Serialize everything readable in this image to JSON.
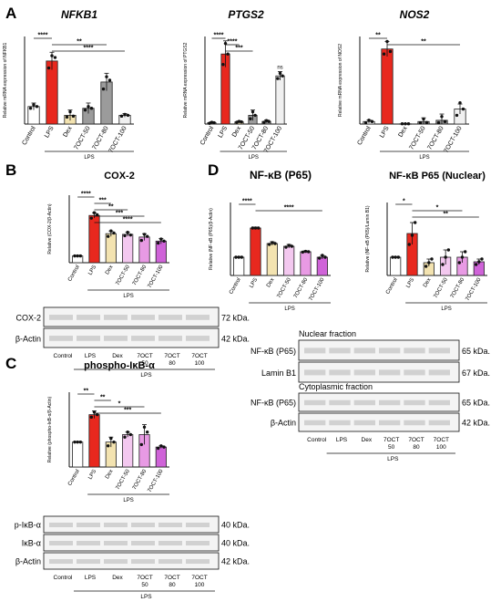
{
  "panels": {
    "A": {
      "letter": "A"
    },
    "B": {
      "letter": "B",
      "title": "COX-2"
    },
    "C": {
      "letter": "C",
      "title": "phospho-IκB-α"
    },
    "D": {
      "letter": "D"
    }
  },
  "group_label": "LPS",
  "chart_data": [
    {
      "id": "nfkb1",
      "type": "bar",
      "title": "NFKB1",
      "ylabel": "Relative mRNA expression of NFKB1",
      "categories": [
        "Control",
        "LPS",
        "Dex",
        "7OCT-50",
        "7OCT-80",
        "7OCT-100"
      ],
      "values": [
        1.0,
        3.6,
        0.5,
        0.9,
        2.4,
        0.5
      ],
      "errors": [
        0.2,
        0.5,
        0.3,
        0.3,
        0.5,
        0.1
      ],
      "points": [
        [
          0.9,
          1.1,
          1.0
        ],
        [
          3.2,
          3.9,
          3.8
        ],
        [
          0.4,
          0.7,
          0.45
        ],
        [
          0.8,
          1.0,
          0.9
        ],
        [
          2.0,
          2.7,
          2.5
        ],
        [
          0.45,
          0.55,
          0.5
        ]
      ],
      "ylim": [
        0,
        5
      ],
      "sig": [
        {
          "from": 0,
          "to": 1,
          "label": "****"
        },
        {
          "from": 1,
          "to": 4,
          "label": "**"
        },
        {
          "from": 1,
          "to": 5,
          "label": "****"
        }
      ],
      "group_label": "LPS"
    },
    {
      "id": "ptgs2",
      "type": "bar",
      "title": "PTGS2",
      "ylabel": "Relative mRNA expression of PTGS2",
      "categories": [
        "Control",
        "LPS",
        "Dex",
        "7OCT-50",
        "7OCT-80",
        "7OCT-100"
      ],
      "values": [
        1.5,
        80,
        2.5,
        10,
        3,
        55
      ],
      "errors": [
        1.0,
        15,
        1.0,
        6,
        1.5,
        5
      ],
      "points": [
        [
          0.8,
          2.0,
          1.5
        ],
        [
          68,
          92,
          80
        ],
        [
          2.0,
          3.0,
          2.5
        ],
        [
          6,
          14,
          10
        ],
        [
          2.0,
          4.0,
          3.0
        ],
        [
          52,
          58,
          55
        ]
      ],
      "ylim": [
        0,
        100
      ],
      "sig": [
        {
          "from": 0,
          "to": 1,
          "label": "****"
        },
        {
          "from": 1,
          "to": 2,
          "label": "****"
        },
        {
          "from": 1,
          "to": 3,
          "label": "***"
        },
        {
          "from": 5,
          "to": 5,
          "label": "ns"
        }
      ],
      "group_label": "LPS"
    },
    {
      "id": "nos2",
      "type": "bar",
      "title": "NOS2",
      "ylabel": "Relative mRNA expression of NOS2",
      "categories": [
        "Control",
        "LPS",
        "Dex",
        "7OCT-50",
        "7OCT-80",
        "7OCT-100"
      ],
      "values": [
        1.0,
        30,
        0.1,
        1.0,
        1.5,
        6
      ],
      "errors": [
        0.6,
        3,
        0.1,
        1.5,
        2.5,
        2
      ],
      "points": [
        [
          0.5,
          1.5,
          1.0
        ],
        [
          28,
          33,
          29
        ],
        [
          0.1,
          0.1,
          0.1
        ],
        [
          0.5,
          2.0,
          0.6
        ],
        [
          0.5,
          3.0,
          1.0
        ],
        [
          3.5,
          8.5,
          6.0
        ]
      ],
      "ylim": [
        0,
        35
      ],
      "sig": [
        {
          "from": 0,
          "to": 1,
          "label": "**"
        },
        {
          "from": 1,
          "to": 5,
          "label": "**"
        }
      ],
      "group_label": "LPS"
    },
    {
      "id": "cox2",
      "type": "bar",
      "title": "COX-2",
      "ylabel": "Relative (COX-2/β-Actin)",
      "categories": [
        "Control",
        "LPS",
        "Dex",
        "7OCT-50",
        "7OCT-80",
        "7OCT-100"
      ],
      "values": [
        1.0,
        7.0,
        4.3,
        4.2,
        3.8,
        3.2
      ],
      "errors": [
        0.05,
        0.4,
        0.4,
        0.3,
        0.5,
        0.4
      ],
      "points": [
        [
          1.0,
          1.0,
          1.0
        ],
        [
          6.6,
          7.4,
          7.1
        ],
        [
          3.9,
          4.7,
          4.4
        ],
        [
          4.0,
          4.5,
          4.1
        ],
        [
          3.3,
          4.2,
          3.9
        ],
        [
          2.9,
          3.5,
          3.2
        ]
      ],
      "ylim": [
        0,
        10
      ],
      "sig": [
        {
          "from": 0,
          "to": 1,
          "label": "****"
        },
        {
          "from": 1,
          "to": 2,
          "label": "***"
        },
        {
          "from": 1,
          "to": 3,
          "label": "**"
        },
        {
          "from": 1,
          "to": 4,
          "label": "***"
        },
        {
          "from": 1,
          "to": 5,
          "label": "****"
        }
      ],
      "group_label": "LPS"
    },
    {
      "id": "ikba",
      "type": "bar",
      "title": "phospho-IκB-α",
      "ylabel": "Relative (phospho-IκB-α/β-Actin)",
      "categories": [
        "Control",
        "LPS",
        "Dex",
        "7OCT-50",
        "7OCT-80",
        "7OCT-100"
      ],
      "values": [
        1.0,
        2.1,
        1.0,
        1.3,
        1.3,
        0.8
      ],
      "errors": [
        0.02,
        0.15,
        0.2,
        0.1,
        0.4,
        0.05
      ],
      "points": [
        [
          1.0,
          1.0,
          1.0
        ],
        [
          2.0,
          2.2,
          2.1
        ],
        [
          0.85,
          1.15,
          1.0
        ],
        [
          1.2,
          1.4,
          1.3
        ],
        [
          0.9,
          1.6,
          1.4
        ],
        [
          0.75,
          0.85,
          0.8
        ]
      ],
      "ylim": [
        0,
        3
      ],
      "sig": [
        {
          "from": 0,
          "to": 1,
          "label": "**"
        },
        {
          "from": 1,
          "to": 2,
          "label": "**"
        },
        {
          "from": 1,
          "to": 4,
          "label": "*"
        },
        {
          "from": 1,
          "to": 5,
          "label": "***"
        }
      ],
      "group_label": "LPS"
    },
    {
      "id": "p65",
      "type": "bar",
      "title": "NF-κB (P65)",
      "ylabel": "Relative (NF-κB (P65)/β-Actin)",
      "categories": [
        "Control",
        "LPS",
        "Dex",
        "7OCT-50",
        "7OCT-80",
        "7OCT-100"
      ],
      "values": [
        1.0,
        2.6,
        1.75,
        1.6,
        1.3,
        1.0
      ],
      "errors": [
        0.02,
        0.05,
        0.1,
        0.1,
        0.05,
        0.1
      ],
      "points": [
        [
          1.0,
          1.0,
          1.0
        ],
        [
          2.6,
          2.6,
          2.6
        ],
        [
          1.7,
          1.8,
          1.75
        ],
        [
          1.55,
          1.65,
          1.6
        ],
        [
          1.28,
          1.32,
          1.3
        ],
        [
          0.95,
          1.1,
          1.0
        ]
      ],
      "ylim": [
        0,
        4
      ],
      "sig": [
        {
          "from": 0,
          "to": 1,
          "label": "****"
        },
        {
          "from": 1,
          "to": 5,
          "label": "****"
        }
      ],
      "group_label": "LPS"
    },
    {
      "id": "p65n",
      "type": "bar",
      "title": "NF-κB P65 (Nuclear)",
      "ylabel": "Relative (NF-κB (P65)/Lamin B1)",
      "categories": [
        "Control",
        "LPS",
        "Dex",
        "7OCT-50",
        "7OCT-80",
        "7OCT-100"
      ],
      "values": [
        1.0,
        2.3,
        0.7,
        1.0,
        1.0,
        0.75
      ],
      "errors": [
        0.02,
        0.6,
        0.2,
        0.4,
        0.3,
        0.15
      ],
      "points": [
        [
          1.0,
          1.0,
          1.0
        ],
        [
          1.7,
          2.2,
          2.9
        ],
        [
          0.5,
          0.7,
          0.9
        ],
        [
          0.6,
          1.0,
          1.4
        ],
        [
          0.7,
          1.0,
          1.3
        ],
        [
          0.6,
          0.75,
          0.9
        ]
      ],
      "ylim": [
        0,
        4
      ],
      "sig": [
        {
          "from": 0,
          "to": 1,
          "label": "*"
        },
        {
          "from": 1,
          "to": 4,
          "label": "*"
        },
        {
          "from": 1,
          "to": 5,
          "label": "**"
        }
      ],
      "group_label": "LPS"
    }
  ],
  "blots": {
    "B": {
      "rows": [
        {
          "label": "COX-2",
          "kda": "72 kDa."
        },
        {
          "label": "β-Actin",
          "kda": "42 kDa."
        }
      ],
      "lanes": [
        "Control",
        "LPS",
        "Dex",
        "7OCT\n50",
        "7OCT\n80",
        "7OCT\n100"
      ]
    },
    "C": {
      "rows": [
        {
          "label": "p-IκB-α",
          "kda": "40 kDa."
        },
        {
          "label": "IκB-α",
          "kda": "40 kDa."
        },
        {
          "label": "β-Actin",
          "kda": "42 kDa."
        }
      ],
      "lanes": [
        "Control",
        "LPS",
        "Dex",
        "7OCT\n50",
        "7OCT\n80",
        "7OCT\n100"
      ]
    },
    "D_nuclear": {
      "title": "Nuclear fraction",
      "rows": [
        {
          "label": "NF-κB (P65)",
          "kda": "65 kDa."
        },
        {
          "label": "Lamin B1",
          "kda": "67 kDa."
        }
      ]
    },
    "D_cyto": {
      "title": "Cytoplasmic fraction",
      "rows": [
        {
          "label": "NF-κB (P65)",
          "kda": "65 kDa."
        },
        {
          "label": "β-Actin",
          "kda": "42 kDa."
        }
      ],
      "lanes": [
        "Control",
        "LPS",
        "Dex",
        "7OCT\n50",
        "7OCT\n80",
        "7OCT\n100"
      ]
    }
  },
  "colors": {
    "bars": [
      "#ffffff",
      "#e8281e",
      "#f3e3b0",
      "#f3c8ef",
      "#e89ae4",
      "#cf63d8"
    ],
    "bars_A": [
      "#ffffff",
      "#e8281e",
      "#f3e3b0",
      "#9b9b9b",
      "#9b9b9b",
      "#f0f0f0"
    ],
    "axis": "#111111"
  }
}
